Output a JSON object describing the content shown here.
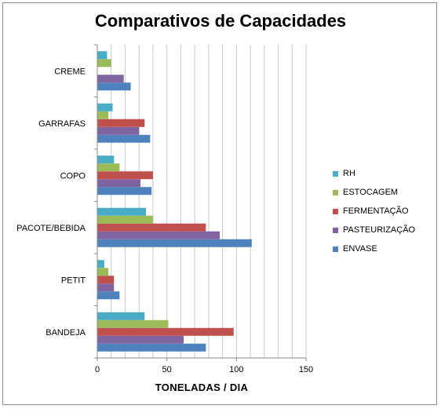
{
  "chart_data": {
    "type": "bar",
    "orientation": "horizontal",
    "title": "Comparativos de Capacidades",
    "xlabel": "TONELADAS / DIA",
    "ylabel": "",
    "xlim": [
      0,
      150
    ],
    "xticks": [
      0,
      50,
      100,
      150
    ],
    "grid": "vertical minor gridlines every 10",
    "legend_position": "right",
    "categories": [
      "BANDEJA",
      "PETIT",
      "PACOTE/BEBIDA",
      "COPO",
      "GARRAFAS",
      "CREME"
    ],
    "series": [
      {
        "name": "ENVASE",
        "color": "#4f81bd",
        "values": [
          78,
          16,
          111,
          39,
          38,
          24
        ]
      },
      {
        "name": "PASTEURIZAÇÃO",
        "color": "#8064a2",
        "values": [
          62,
          12,
          88,
          31,
          30,
          19
        ]
      },
      {
        "name": "FERMENTAÇÃO",
        "color": "#c0504d",
        "values": [
          98,
          12,
          78,
          40,
          34,
          0
        ]
      },
      {
        "name": "ESTOCAGEM",
        "color": "#9bbb59",
        "values": [
          51,
          8,
          40,
          16,
          8,
          10
        ]
      },
      {
        "name": "RH",
        "color": "#4bacc6",
        "values": [
          34,
          5,
          35,
          12,
          11,
          7
        ]
      }
    ],
    "legend_order": [
      "RH",
      "ESTOCAGEM",
      "FERMENTAÇÃO",
      "PASTEURIZAÇÃO",
      "ENVASE"
    ]
  }
}
